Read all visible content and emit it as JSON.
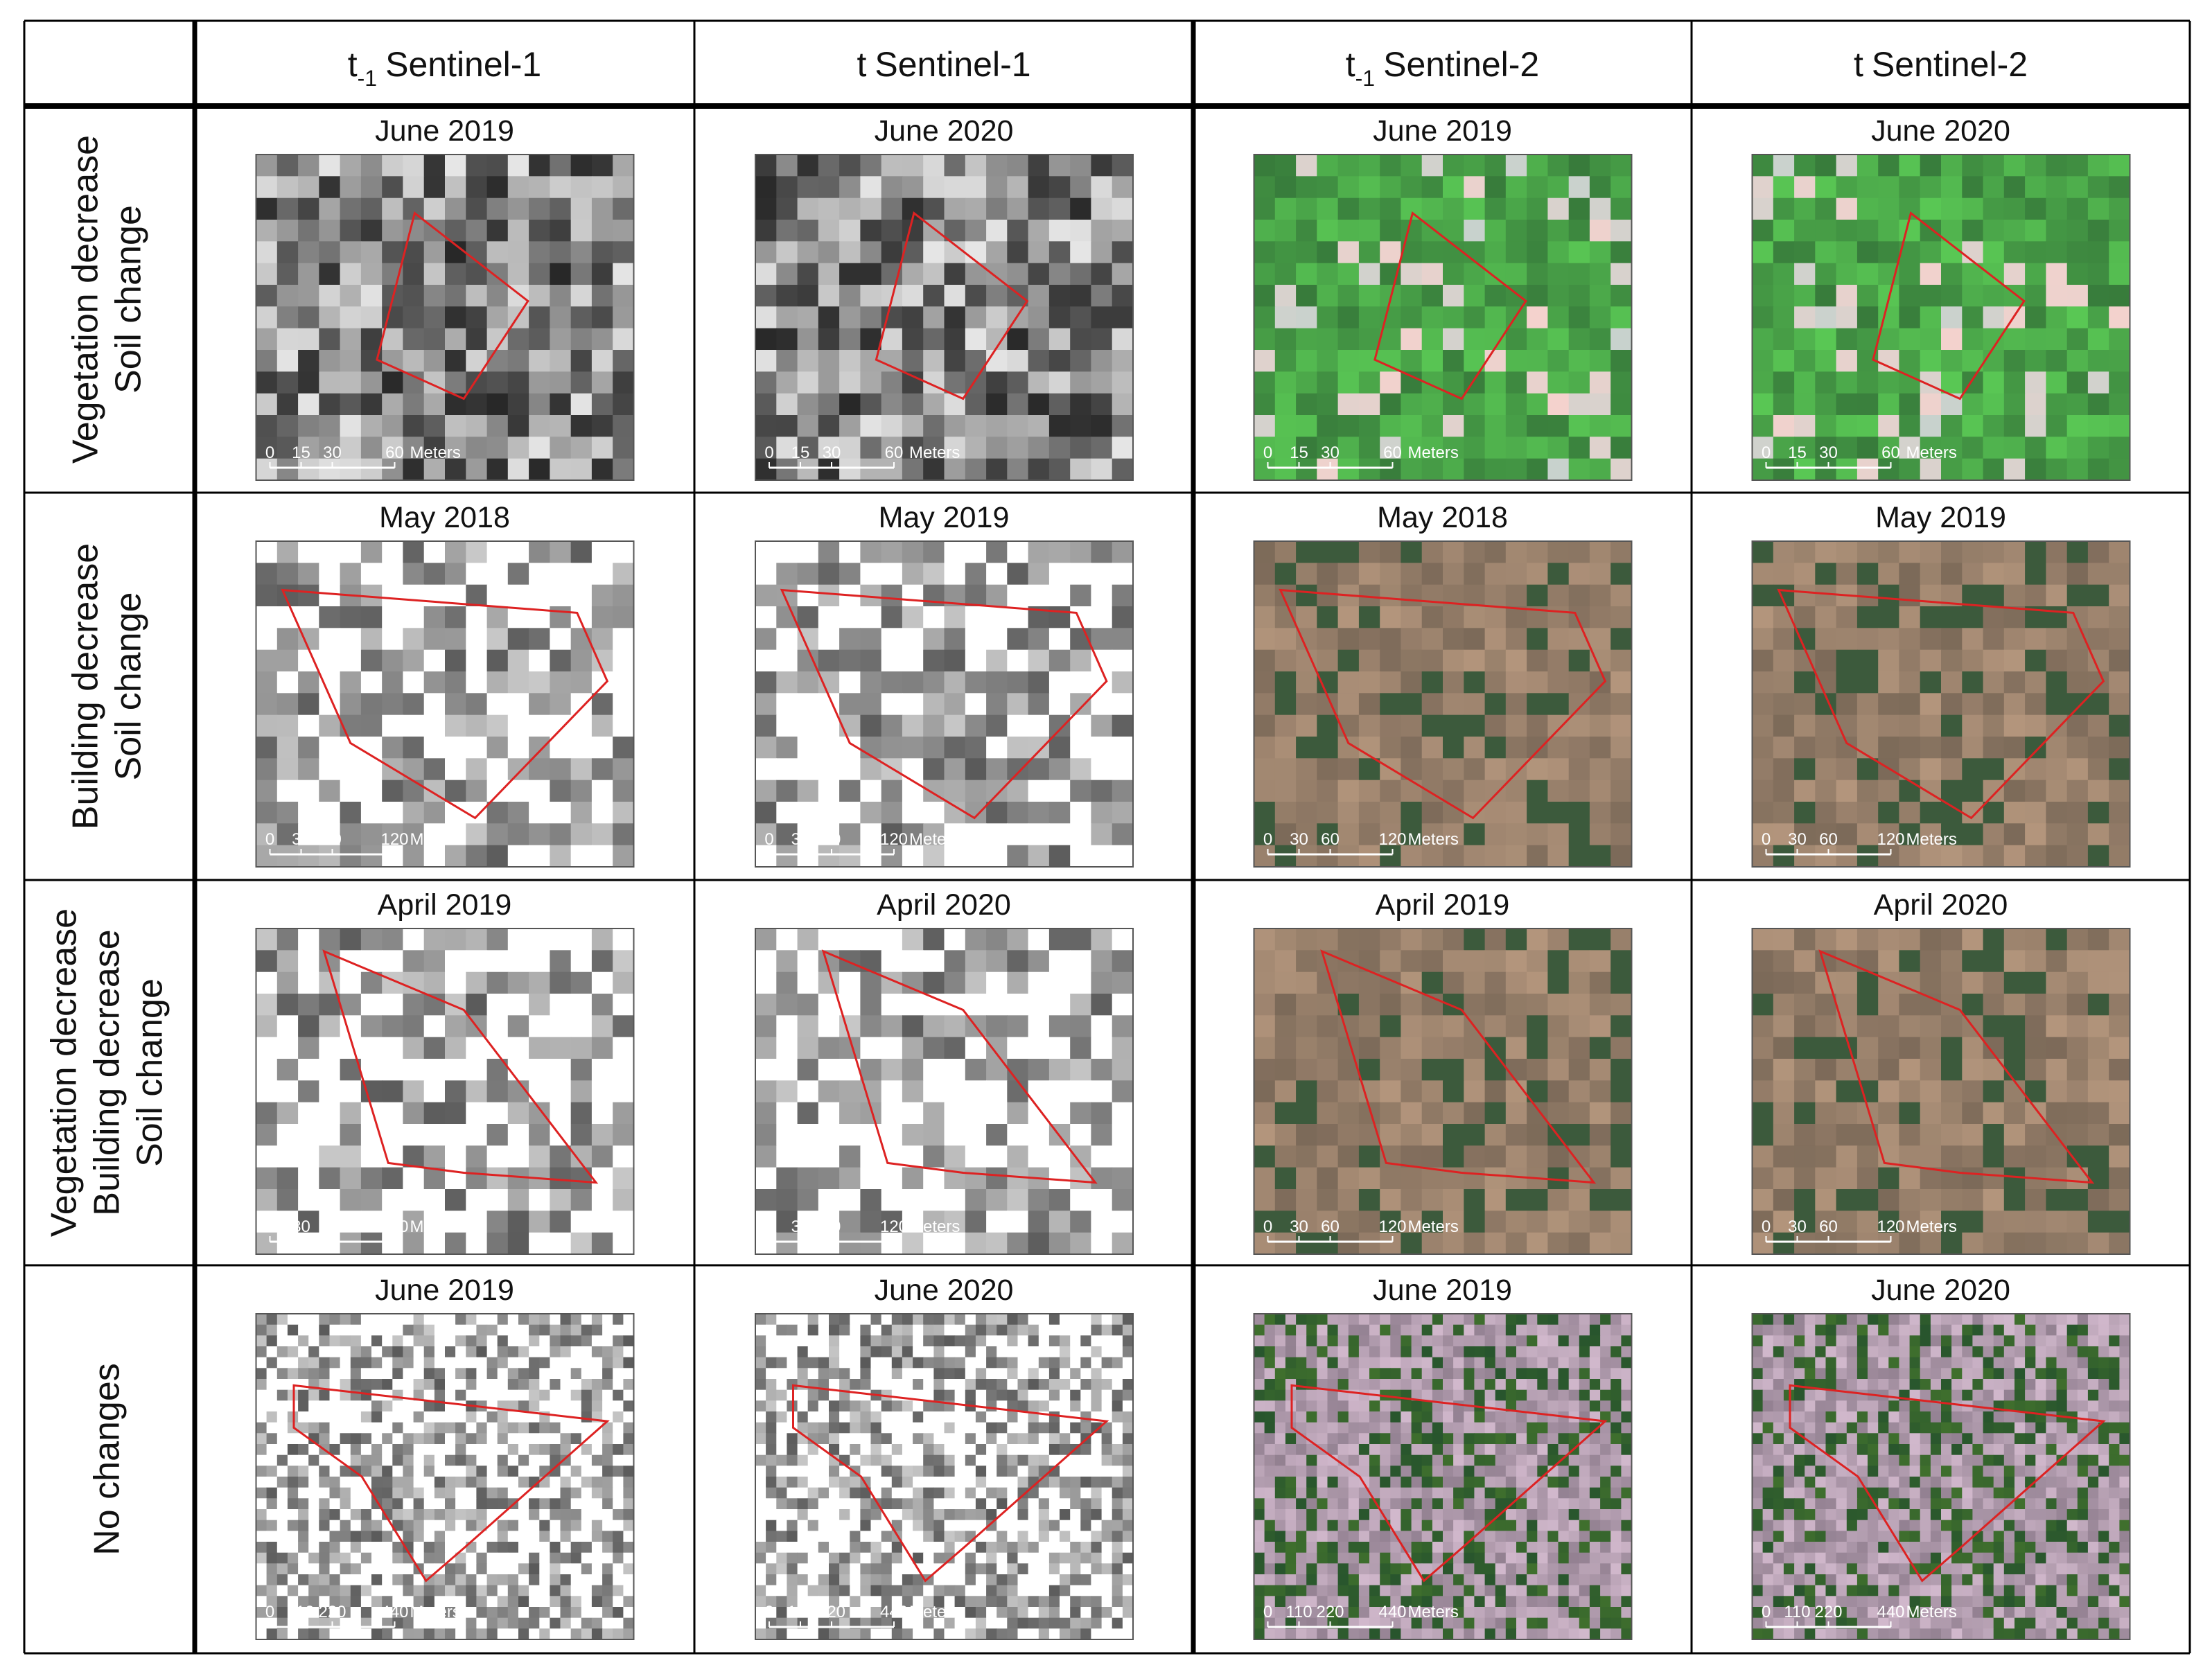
{
  "header": {
    "columns": [
      {
        "prefix": "t",
        "subscript": "-1",
        "label": "Sentinel-1"
      },
      {
        "prefix": "t",
        "label": "Sentinel-1"
      },
      {
        "prefix": "t",
        "subscript": "-1",
        "label": "Sentinel-2"
      },
      {
        "prefix": "t",
        "label": "Sentinel-2"
      }
    ]
  },
  "rows": [
    {
      "labels": [
        "Vegetation decrease",
        "Soil change"
      ],
      "dates": [
        "June 2019",
        "June 2020",
        "June 2019",
        "June 2020"
      ],
      "scale": [
        "0",
        "15",
        "30",
        "60",
        "Meters"
      ]
    },
    {
      "labels": [
        "Building decrease",
        "Soil change"
      ],
      "dates": [
        "May 2018",
        "May 2019",
        "May 2018",
        "May 2019"
      ],
      "scale": [
        "0",
        "30",
        "60",
        "120",
        "Meters"
      ]
    },
    {
      "labels": [
        "Vegetation decrease",
        "Building decrease",
        "Soil change"
      ],
      "dates": [
        "April 2019",
        "April 2020",
        "April 2019",
        "April 2020"
      ],
      "scale": [
        "0",
        "30",
        "60",
        "120",
        "Meters"
      ]
    },
    {
      "labels": [
        "No changes"
      ],
      "dates": [
        "June 2019",
        "June 2020",
        "June 2019",
        "June 2020"
      ],
      "scale": [
        "0",
        "110",
        "220",
        "440",
        "Meters"
      ]
    }
  ]
}
